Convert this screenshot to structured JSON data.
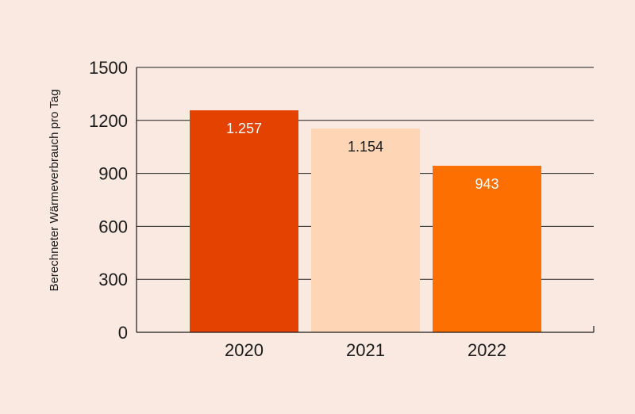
{
  "chart_data": {
    "type": "bar",
    "title": "",
    "xlabel": "",
    "ylabel": "Berechneter Wärmeverbrauch pro Tag",
    "categories": [
      "2020",
      "2021",
      "2022"
    ],
    "values": [
      1257,
      1154,
      943
    ],
    "value_labels": [
      "1.257",
      "1.154",
      "943"
    ],
    "bar_colors": [
      "#e44200",
      "#fed5b5",
      "#fd6f00"
    ],
    "label_colors": [
      "#ffffff",
      "#1a1a1a",
      "#ffffff"
    ],
    "ylim": [
      0,
      1500
    ],
    "yticks": [
      0,
      300,
      600,
      900,
      1200,
      1500
    ],
    "ytick_labels": [
      "0",
      "300",
      "600",
      "900",
      "1200",
      "1500"
    ],
    "grid": true
  },
  "colors": {
    "background": "#f9e9e0",
    "axis": "#1a1a1a"
  }
}
